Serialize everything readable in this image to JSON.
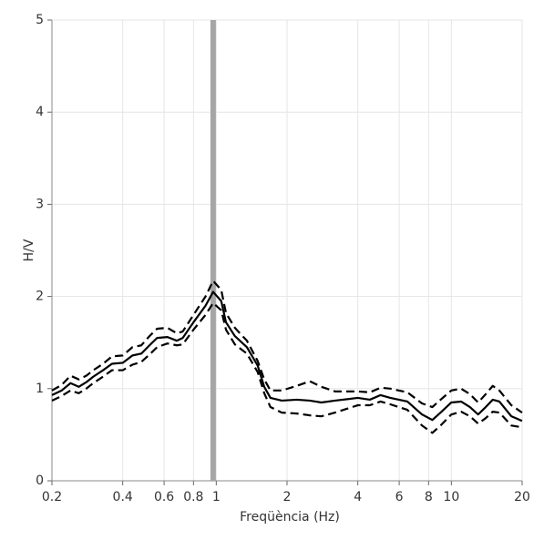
{
  "chart_data": {
    "type": "line",
    "x_label": "Freqüència (Hz)",
    "y_label": "H/V",
    "x": [
      0.2,
      0.22,
      0.24,
      0.26,
      0.28,
      0.3,
      0.33,
      0.36,
      0.4,
      0.44,
      0.48,
      0.52,
      0.56,
      0.62,
      0.68,
      0.72,
      0.8,
      0.9,
      0.97,
      1.05,
      1.1,
      1.2,
      1.35,
      1.5,
      1.6,
      1.7,
      1.9,
      2.2,
      2.5,
      2.8,
      3.2,
      4,
      4.5,
      5,
      5.5,
      6.5,
      7.5,
      8.3,
      9,
      10,
      11,
      12,
      13,
      14,
      15,
      16,
      18,
      20
    ],
    "series": [
      {
        "color": "#000000",
        "dashed": true,
        "values": [
          0.98,
          1.04,
          1.14,
          1.1,
          1.14,
          1.2,
          1.27,
          1.35,
          1.36,
          1.45,
          1.47,
          1.57,
          1.65,
          1.66,
          1.6,
          1.62,
          1.8,
          2.0,
          2.17,
          2.07,
          1.82,
          1.66,
          1.52,
          1.3,
          1.1,
          0.98,
          0.98,
          1.03,
          1.08,
          1.02,
          0.97,
          0.97,
          0.96,
          1.01,
          1.0,
          0.96,
          0.84,
          0.8,
          0.88,
          0.98,
          1.0,
          0.94,
          0.85,
          0.94,
          1.03,
          0.98,
          0.82,
          0.74
        ]
      },
      {
        "color": "#000000",
        "dashed": false,
        "values": [
          0.93,
          0.98,
          1.06,
          1.02,
          1.07,
          1.13,
          1.2,
          1.27,
          1.28,
          1.36,
          1.38,
          1.47,
          1.55,
          1.56,
          1.52,
          1.55,
          1.72,
          1.9,
          2.05,
          1.95,
          1.72,
          1.57,
          1.45,
          1.25,
          1.02,
          0.9,
          0.87,
          0.88,
          0.87,
          0.85,
          0.87,
          0.9,
          0.88,
          0.93,
          0.9,
          0.86,
          0.72,
          0.66,
          0.74,
          0.85,
          0.86,
          0.8,
          0.72,
          0.8,
          0.88,
          0.86,
          0.7,
          0.65
        ]
      },
      {
        "color": "#000000",
        "dashed": true,
        "values": [
          0.87,
          0.92,
          0.98,
          0.95,
          1.0,
          1.06,
          1.13,
          1.2,
          1.2,
          1.26,
          1.29,
          1.37,
          1.45,
          1.49,
          1.47,
          1.48,
          1.64,
          1.8,
          1.93,
          1.85,
          1.64,
          1.48,
          1.38,
          1.18,
          0.95,
          0.8,
          0.74,
          0.73,
          0.71,
          0.7,
          0.74,
          0.82,
          0.82,
          0.86,
          0.83,
          0.77,
          0.6,
          0.52,
          0.6,
          0.72,
          0.75,
          0.7,
          0.62,
          0.68,
          0.75,
          0.74,
          0.6,
          0.58
        ]
      }
    ],
    "highlight_x": 0.97,
    "highlight_color": "#a6a6a6",
    "xlog": true,
    "xlim": [
      0.2,
      20
    ],
    "xticks": [
      0.2,
      0.4,
      0.6,
      0.8,
      1,
      2,
      4,
      6,
      8,
      10,
      20
    ],
    "ylim": [
      0,
      5
    ],
    "yticks": [
      0,
      1,
      2,
      3,
      4,
      5
    ],
    "grid": true
  }
}
